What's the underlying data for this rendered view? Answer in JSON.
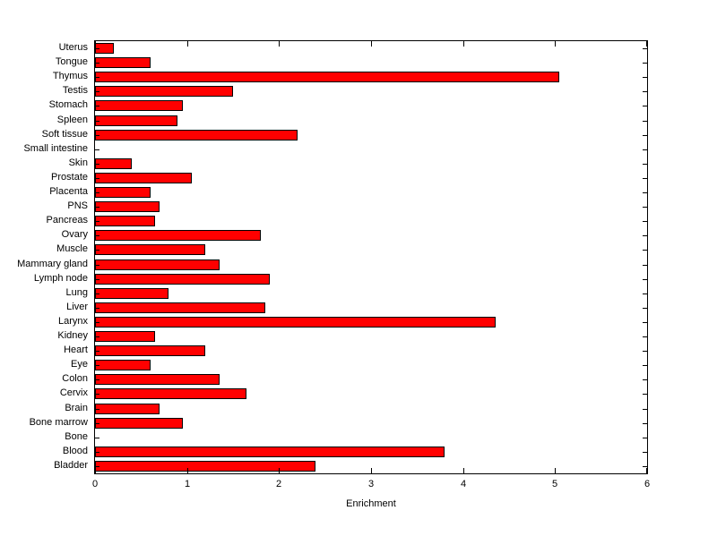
{
  "chart_data": {
    "type": "bar",
    "orientation": "horizontal",
    "title": "",
    "xlabel": "Enrichment",
    "ylabel": "",
    "xlim": [
      0,
      6
    ],
    "xticks": [
      0,
      1,
      2,
      3,
      4,
      5,
      6
    ],
    "grid": false,
    "legend": null,
    "bar_color": "#ff0000",
    "bar_edge_color": "#000000",
    "categories": [
      "Uterus",
      "Tongue",
      "Thymus",
      "Testis",
      "Stomach",
      "Spleen",
      "Soft tissue",
      "Small intestine",
      "Skin",
      "Prostate",
      "Placenta",
      "PNS",
      "Pancreas",
      "Ovary",
      "Muscle",
      "Mammary gland",
      "Lymph node",
      "Lung",
      "Liver",
      "Larynx",
      "Kidney",
      "Heart",
      "Eye",
      "Colon",
      "Cervix",
      "Brain",
      "Bone marrow",
      "Bone",
      "Blood",
      "Bladder"
    ],
    "values": [
      0.2,
      0.6,
      5.05,
      1.5,
      0.95,
      0.9,
      2.2,
      0,
      0.4,
      1.05,
      0.6,
      0.7,
      0.65,
      1.8,
      1.2,
      1.35,
      1.9,
      0.8,
      1.85,
      4.35,
      0.65,
      1.2,
      0.6,
      1.35,
      1.65,
      0.7,
      0.95,
      0,
      3.8,
      2.4
    ]
  }
}
